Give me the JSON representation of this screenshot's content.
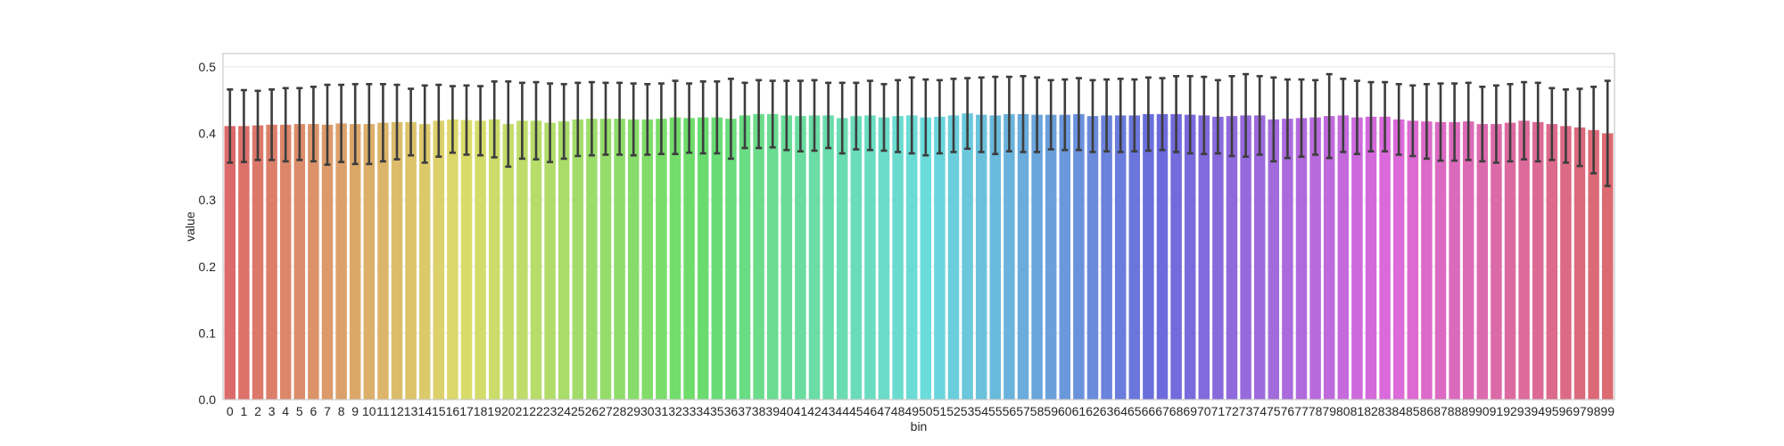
{
  "chart_data": {
    "type": "bar",
    "xlabel": "bin",
    "ylabel": "value",
    "ylim": [
      0,
      0.52
    ],
    "yticks": [
      "0.0",
      "0.1",
      "0.2",
      "0.3",
      "0.4",
      "0.5"
    ],
    "grid": true,
    "categories": [
      "0",
      "1",
      "2",
      "3",
      "4",
      "5",
      "6",
      "7",
      "8",
      "9",
      "10",
      "11",
      "12",
      "13",
      "14",
      "15",
      "16",
      "17",
      "18",
      "19",
      "20",
      "21",
      "22",
      "23",
      "24",
      "25",
      "26",
      "27",
      "28",
      "29",
      "30",
      "31",
      "32",
      "33",
      "34",
      "35",
      "36",
      "37",
      "38",
      "39",
      "40",
      "41",
      "42",
      "43",
      "44",
      "45",
      "46",
      "47",
      "48",
      "49",
      "50",
      "51",
      "52",
      "53",
      "54",
      "55",
      "56",
      "57",
      "58",
      "59",
      "60",
      "61",
      "62",
      "63",
      "64",
      "65",
      "66",
      "67",
      "68",
      "69",
      "70",
      "71",
      "72",
      "73",
      "74",
      "75",
      "76",
      "77",
      "78",
      "79",
      "80",
      "81",
      "82",
      "83",
      "84",
      "85",
      "86",
      "87",
      "88",
      "89",
      "90",
      "91",
      "92",
      "93",
      "94",
      "95",
      "96",
      "97",
      "98",
      "99"
    ],
    "values": [
      0.411,
      0.411,
      0.412,
      0.413,
      0.413,
      0.414,
      0.414,
      0.413,
      0.415,
      0.414,
      0.414,
      0.416,
      0.417,
      0.417,
      0.414,
      0.419,
      0.421,
      0.42,
      0.419,
      0.421,
      0.414,
      0.419,
      0.419,
      0.416,
      0.418,
      0.421,
      0.422,
      0.422,
      0.422,
      0.421,
      0.421,
      0.422,
      0.424,
      0.423,
      0.424,
      0.424,
      0.422,
      0.427,
      0.429,
      0.429,
      0.427,
      0.426,
      0.427,
      0.427,
      0.423,
      0.426,
      0.427,
      0.424,
      0.426,
      0.427,
      0.424,
      0.425,
      0.427,
      0.43,
      0.428,
      0.427,
      0.429,
      0.429,
      0.428,
      0.428,
      0.428,
      0.429,
      0.426,
      0.427,
      0.427,
      0.427,
      0.429,
      0.429,
      0.429,
      0.428,
      0.427,
      0.425,
      0.426,
      0.427,
      0.427,
      0.421,
      0.422,
      0.423,
      0.424,
      0.426,
      0.427,
      0.424,
      0.425,
      0.425,
      0.421,
      0.419,
      0.418,
      0.417,
      0.417,
      0.418,
      0.414,
      0.414,
      0.416,
      0.419,
      0.417,
      0.414,
      0.411,
      0.409,
      0.405,
      0.4
    ],
    "errors": [
      0.055,
      0.054,
      0.052,
      0.053,
      0.055,
      0.054,
      0.056,
      0.06,
      0.058,
      0.06,
      0.06,
      0.058,
      0.056,
      0.05,
      0.058,
      0.054,
      0.05,
      0.052,
      0.052,
      0.057,
      0.064,
      0.057,
      0.058,
      0.059,
      0.056,
      0.055,
      0.055,
      0.054,
      0.054,
      0.054,
      0.053,
      0.053,
      0.055,
      0.052,
      0.054,
      0.054,
      0.06,
      0.049,
      0.051,
      0.05,
      0.052,
      0.053,
      0.053,
      0.049,
      0.053,
      0.05,
      0.052,
      0.05,
      0.054,
      0.057,
      0.057,
      0.055,
      0.055,
      0.053,
      0.056,
      0.058,
      0.056,
      0.057,
      0.056,
      0.052,
      0.053,
      0.054,
      0.054,
      0.054,
      0.055,
      0.054,
      0.055,
      0.054,
      0.057,
      0.058,
      0.058,
      0.055,
      0.06,
      0.062,
      0.059,
      0.063,
      0.059,
      0.058,
      0.056,
      0.063,
      0.055,
      0.055,
      0.052,
      0.052,
      0.053,
      0.053,
      0.056,
      0.058,
      0.058,
      0.058,
      0.056,
      0.058,
      0.058,
      0.058,
      0.059,
      0.054,
      0.055,
      0.058,
      0.065,
      0.079
    ]
  }
}
